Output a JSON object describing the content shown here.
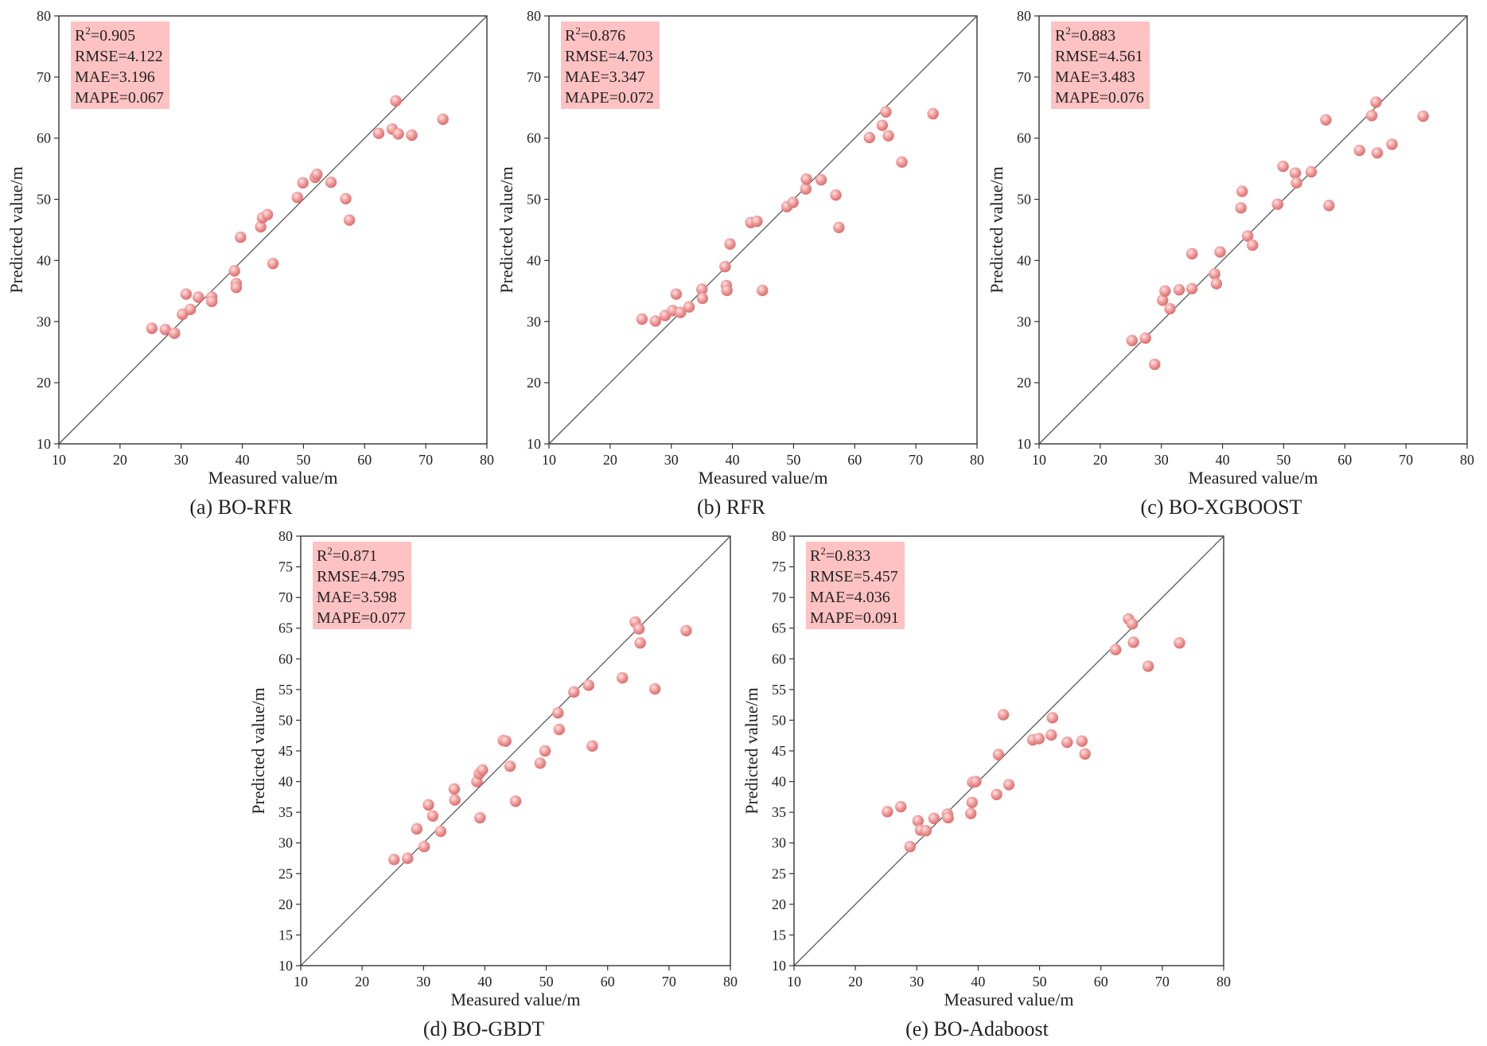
{
  "style": {
    "point_color": "#f09a9a",
    "point_highlight": "#fde2e2",
    "point_edge": "#d96f6f",
    "metric_box_color": "#ffc2c2"
  },
  "chart_data": [
    {
      "type": "scatter",
      "caption": "(a) BO-RFR",
      "xlabel": "Measured value/m",
      "ylabel": "Predicted value/m",
      "xlim": [
        10,
        80
      ],
      "ylim": [
        10,
        80
      ],
      "xticks": [
        10,
        20,
        30,
        40,
        50,
        60,
        70,
        80
      ],
      "yticks": [
        10,
        20,
        30,
        40,
        50,
        60,
        70,
        80
      ],
      "metrics": {
        "r2_label": "R",
        "r2_exp": "2",
        "r2_value": "=0.905",
        "rmse": "RMSE=4.122",
        "mae": "MAE=3.196",
        "mape": "MAPE=0.067"
      },
      "points": [
        [
          25.2,
          28.9
        ],
        [
          27.4,
          28.7
        ],
        [
          28.9,
          28.1
        ],
        [
          30.2,
          31.2
        ],
        [
          30.8,
          34.5
        ],
        [
          31.5,
          32.0
        ],
        [
          32.8,
          34.0
        ],
        [
          35.0,
          34.0
        ],
        [
          35.0,
          33.3
        ],
        [
          38.7,
          38.3
        ],
        [
          39.0,
          36.2
        ],
        [
          39.0,
          35.6
        ],
        [
          39.7,
          43.8
        ],
        [
          43.0,
          45.5
        ],
        [
          43.3,
          47.0
        ],
        [
          44.1,
          47.5
        ],
        [
          45.0,
          39.5
        ],
        [
          49.0,
          50.3
        ],
        [
          49.9,
          52.7
        ],
        [
          51.9,
          53.6
        ],
        [
          52.2,
          54.1
        ],
        [
          54.5,
          52.8
        ],
        [
          56.9,
          50.1
        ],
        [
          57.5,
          46.6
        ],
        [
          62.3,
          60.8
        ],
        [
          64.5,
          61.5
        ],
        [
          65.1,
          66.1
        ],
        [
          65.5,
          60.7
        ],
        [
          67.7,
          60.5
        ],
        [
          72.8,
          63.1
        ]
      ]
    },
    {
      "type": "scatter",
      "caption": "(b) RFR",
      "xlabel": "Measured value/m",
      "ylabel": "Predicted value/m",
      "xlim": [
        10,
        80
      ],
      "ylim": [
        10,
        80
      ],
      "xticks": [
        10,
        20,
        30,
        40,
        50,
        60,
        70,
        80
      ],
      "yticks": [
        10,
        20,
        30,
        40,
        50,
        60,
        70,
        80
      ],
      "metrics": {
        "r2_label": "R",
        "r2_exp": "2",
        "r2_value": "=0.876",
        "rmse": "RMSE=4.703",
        "mae": "MAE=3.347",
        "mape": "MAPE=0.072"
      },
      "points": [
        [
          25.2,
          30.4
        ],
        [
          27.4,
          30.1
        ],
        [
          29.0,
          31.0
        ],
        [
          30.2,
          31.8
        ],
        [
          30.8,
          34.5
        ],
        [
          31.5,
          31.5
        ],
        [
          32.9,
          32.4
        ],
        [
          35.0,
          35.3
        ],
        [
          35.1,
          33.8
        ],
        [
          38.8,
          39.0
        ],
        [
          39.0,
          35.9
        ],
        [
          39.1,
          35.1
        ],
        [
          39.6,
          42.7
        ],
        [
          43.0,
          46.2
        ],
        [
          44.0,
          46.4
        ],
        [
          44.9,
          35.1
        ],
        [
          48.9,
          48.8
        ],
        [
          49.9,
          49.5
        ],
        [
          52.0,
          51.7
        ],
        [
          52.1,
          53.3
        ],
        [
          54.5,
          53.2
        ],
        [
          56.9,
          50.7
        ],
        [
          57.4,
          45.4
        ],
        [
          62.4,
          60.1
        ],
        [
          64.5,
          62.1
        ],
        [
          65.1,
          64.3
        ],
        [
          65.5,
          60.4
        ],
        [
          67.7,
          56.1
        ],
        [
          72.8,
          64.0
        ]
      ]
    },
    {
      "type": "scatter",
      "caption": "(c) BO-XGBOOST",
      "xlabel": "Measured value/m",
      "ylabel": "Predicted value/m",
      "xlim": [
        10,
        80
      ],
      "ylim": [
        10,
        80
      ],
      "xticks": [
        10,
        20,
        30,
        40,
        50,
        60,
        70,
        80
      ],
      "yticks": [
        10,
        20,
        30,
        40,
        50,
        60,
        70,
        80
      ],
      "metrics": {
        "r2_label": "R",
        "r2_exp": "2",
        "r2_value": "=0.883",
        "rmse": "RMSE=4.561",
        "mae": "MAE=3.483",
        "mape": "MAPE=0.076"
      },
      "points": [
        [
          25.2,
          26.9
        ],
        [
          27.4,
          27.3
        ],
        [
          28.9,
          23.0
        ],
        [
          30.2,
          33.5
        ],
        [
          30.6,
          35.0
        ],
        [
          31.4,
          32.1
        ],
        [
          32.9,
          35.2
        ],
        [
          35.0,
          35.4
        ],
        [
          35.0,
          41.1
        ],
        [
          38.7,
          37.8
        ],
        [
          39.0,
          36.2
        ],
        [
          39.6,
          41.4
        ],
        [
          43.0,
          48.6
        ],
        [
          43.2,
          51.3
        ],
        [
          44.1,
          44.0
        ],
        [
          44.9,
          42.5
        ],
        [
          49.0,
          49.2
        ],
        [
          49.9,
          55.4
        ],
        [
          51.9,
          54.3
        ],
        [
          52.1,
          52.7
        ],
        [
          54.5,
          54.5
        ],
        [
          56.9,
          63.0
        ],
        [
          57.4,
          49.0
        ],
        [
          62.4,
          58.0
        ],
        [
          64.4,
          63.7
        ],
        [
          65.1,
          65.9
        ],
        [
          65.3,
          57.6
        ],
        [
          67.7,
          59.0
        ],
        [
          72.8,
          63.6
        ]
      ]
    },
    {
      "type": "scatter",
      "caption": "(d) BO-GBDT",
      "xlabel": "Measured value/m",
      "ylabel": "Predicted value/m",
      "xlim": [
        10,
        80
      ],
      "ylim": [
        10,
        80
      ],
      "xticks": [
        10,
        20,
        30,
        40,
        50,
        60,
        70,
        80
      ],
      "yticks": [
        10,
        15,
        20,
        25,
        30,
        35,
        40,
        45,
        50,
        55,
        60,
        65,
        70,
        75,
        80
      ],
      "metrics": {
        "r2_label": "R",
        "r2_exp": "2",
        "r2_value": "=0.871",
        "rmse": "RMSE=4.795",
        "mae": "MAE=3.598",
        "mape": "MAPE=0.077"
      },
      "points": [
        [
          25.2,
          27.3
        ],
        [
          27.4,
          27.5
        ],
        [
          28.9,
          32.3
        ],
        [
          30.1,
          29.4
        ],
        [
          30.8,
          36.2
        ],
        [
          31.5,
          34.4
        ],
        [
          32.8,
          31.9
        ],
        [
          35.0,
          38.8
        ],
        [
          35.1,
          37.0
        ],
        [
          38.7,
          40.0
        ],
        [
          39.1,
          41.3
        ],
        [
          39.2,
          34.1
        ],
        [
          39.6,
          41.9
        ],
        [
          43.0,
          46.7
        ],
        [
          43.4,
          46.6
        ],
        [
          44.1,
          42.5
        ],
        [
          45.0,
          36.8
        ],
        [
          49.0,
          43.0
        ],
        [
          49.8,
          45.0
        ],
        [
          51.9,
          51.2
        ],
        [
          52.1,
          48.5
        ],
        [
          54.5,
          54.6
        ],
        [
          56.9,
          55.7
        ],
        [
          57.5,
          45.8
        ],
        [
          62.4,
          56.9
        ],
        [
          64.5,
          66.0
        ],
        [
          65.1,
          64.9
        ],
        [
          65.3,
          62.6
        ],
        [
          67.7,
          55.1
        ],
        [
          72.8,
          64.6
        ]
      ]
    },
    {
      "type": "scatter",
      "caption": "(e) BO-Adaboost",
      "xlabel": "Measured value/m",
      "ylabel": "Predicted value/m",
      "xlim": [
        10,
        80
      ],
      "ylim": [
        10,
        80
      ],
      "xticks": [
        10,
        20,
        30,
        40,
        50,
        60,
        70,
        80
      ],
      "yticks": [
        10,
        15,
        20,
        25,
        30,
        35,
        40,
        45,
        50,
        55,
        60,
        65,
        70,
        75,
        80
      ],
      "metrics": {
        "r2_label": "R",
        "r2_exp": "2",
        "r2_value": "=0.833",
        "rmse": "RMSE=5.457",
        "mae": "MAE=4.036",
        "mape": "MAPE=0.091"
      },
      "points": [
        [
          25.2,
          35.1
        ],
        [
          27.4,
          35.9
        ],
        [
          28.9,
          29.4
        ],
        [
          30.2,
          33.6
        ],
        [
          30.6,
          32.1
        ],
        [
          31.5,
          32.0
        ],
        [
          32.8,
          34.0
        ],
        [
          35.0,
          34.7
        ],
        [
          35.1,
          34.1
        ],
        [
          38.8,
          34.8
        ],
        [
          39.0,
          36.6
        ],
        [
          39.1,
          39.9
        ],
        [
          39.6,
          40.0
        ],
        [
          43.0,
          37.9
        ],
        [
          43.3,
          44.4
        ],
        [
          44.1,
          50.9
        ],
        [
          45.0,
          39.5
        ],
        [
          48.9,
          46.8
        ],
        [
          49.9,
          47.0
        ],
        [
          51.9,
          47.6
        ],
        [
          52.1,
          50.4
        ],
        [
          54.5,
          46.4
        ],
        [
          56.9,
          46.6
        ],
        [
          57.4,
          44.5
        ],
        [
          62.4,
          61.5
        ],
        [
          64.5,
          66.5
        ],
        [
          65.1,
          65.7
        ],
        [
          65.3,
          62.7
        ],
        [
          67.7,
          58.8
        ],
        [
          72.8,
          62.6
        ]
      ]
    }
  ]
}
